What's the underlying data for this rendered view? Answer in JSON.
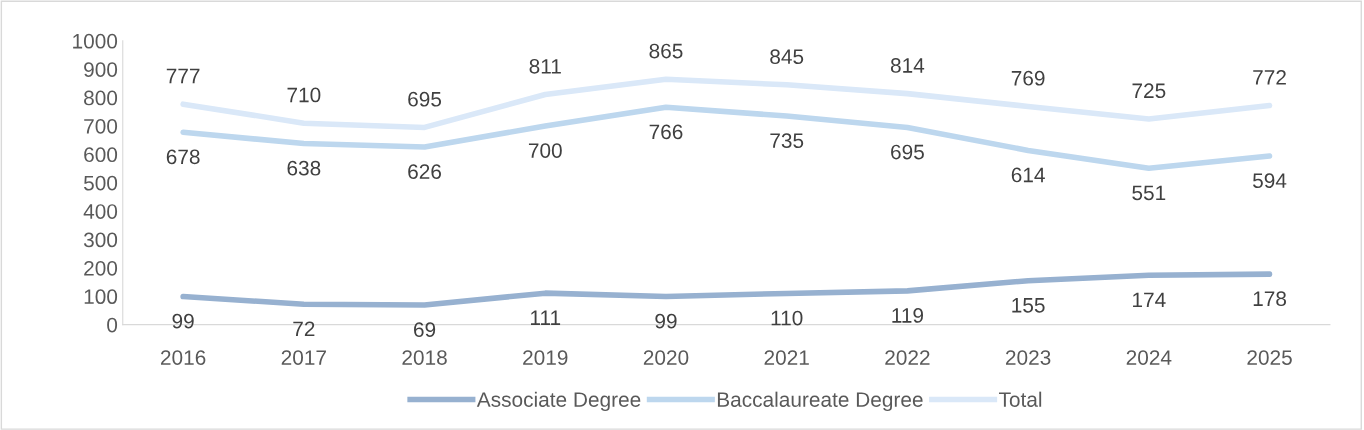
{
  "chart_data": {
    "type": "line",
    "categories": [
      "2016",
      "2017",
      "2018",
      "2019",
      "2020",
      "2021",
      "2022",
      "2023",
      "2024",
      "2025"
    ],
    "series": [
      {
        "name": "Associate Degree",
        "color": "#97b1d0",
        "values": [
          99,
          72,
          69,
          111,
          99,
          110,
          119,
          155,
          174,
          178
        ]
      },
      {
        "name": "Baccalaureate Degree",
        "color": "#bdd7ee",
        "values": [
          678,
          638,
          626,
          700,
          766,
          735,
          695,
          614,
          551,
          594
        ]
      },
      {
        "name": "Total",
        "color": "#dae8f8",
        "values": [
          777,
          710,
          695,
          811,
          865,
          845,
          814,
          769,
          725,
          772
        ]
      }
    ],
    "ylim": [
      0,
      1000
    ],
    "yticks": [
      0,
      100,
      200,
      300,
      400,
      500,
      600,
      700,
      800,
      900,
      1000
    ],
    "data_labels": true,
    "legend": "bottom",
    "grid": false,
    "marker": "none",
    "line_style": "solid"
  }
}
